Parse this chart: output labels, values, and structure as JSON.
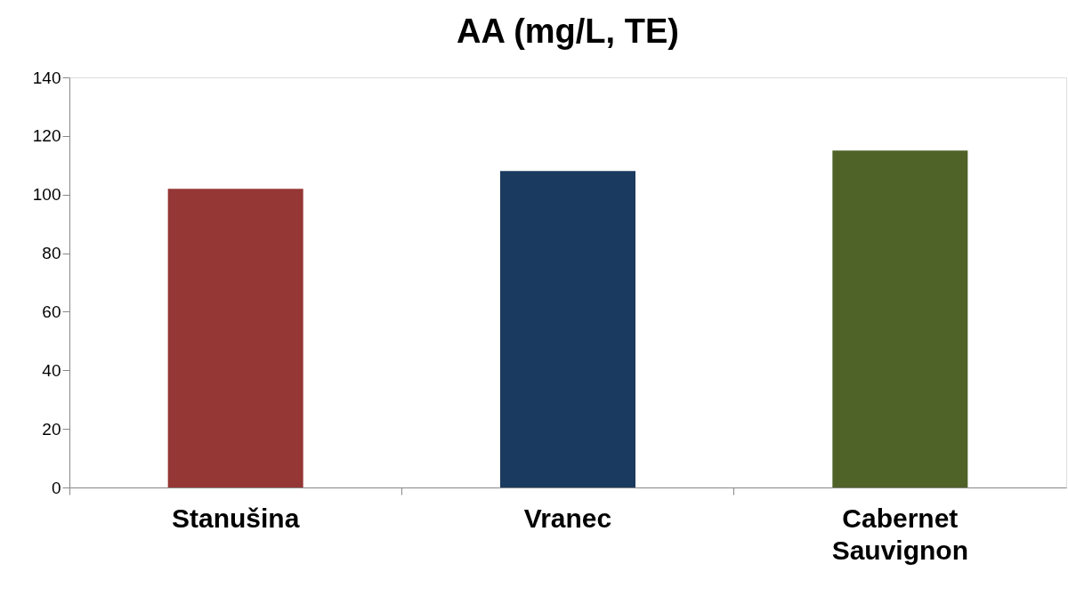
{
  "chart_data": {
    "type": "bar",
    "title": "AA (mg/L, TE)",
    "categories": [
      "Stanušina",
      "Vranec",
      "Cabernet Sauvignon"
    ],
    "values": [
      102,
      108,
      115
    ],
    "colors": [
      "#953735",
      "#1b3a5f",
      "#4f6228"
    ],
    "ylim": [
      0,
      140
    ],
    "yticks": [
      0,
      20,
      40,
      60,
      80,
      100,
      120,
      140
    ],
    "grid": false
  }
}
